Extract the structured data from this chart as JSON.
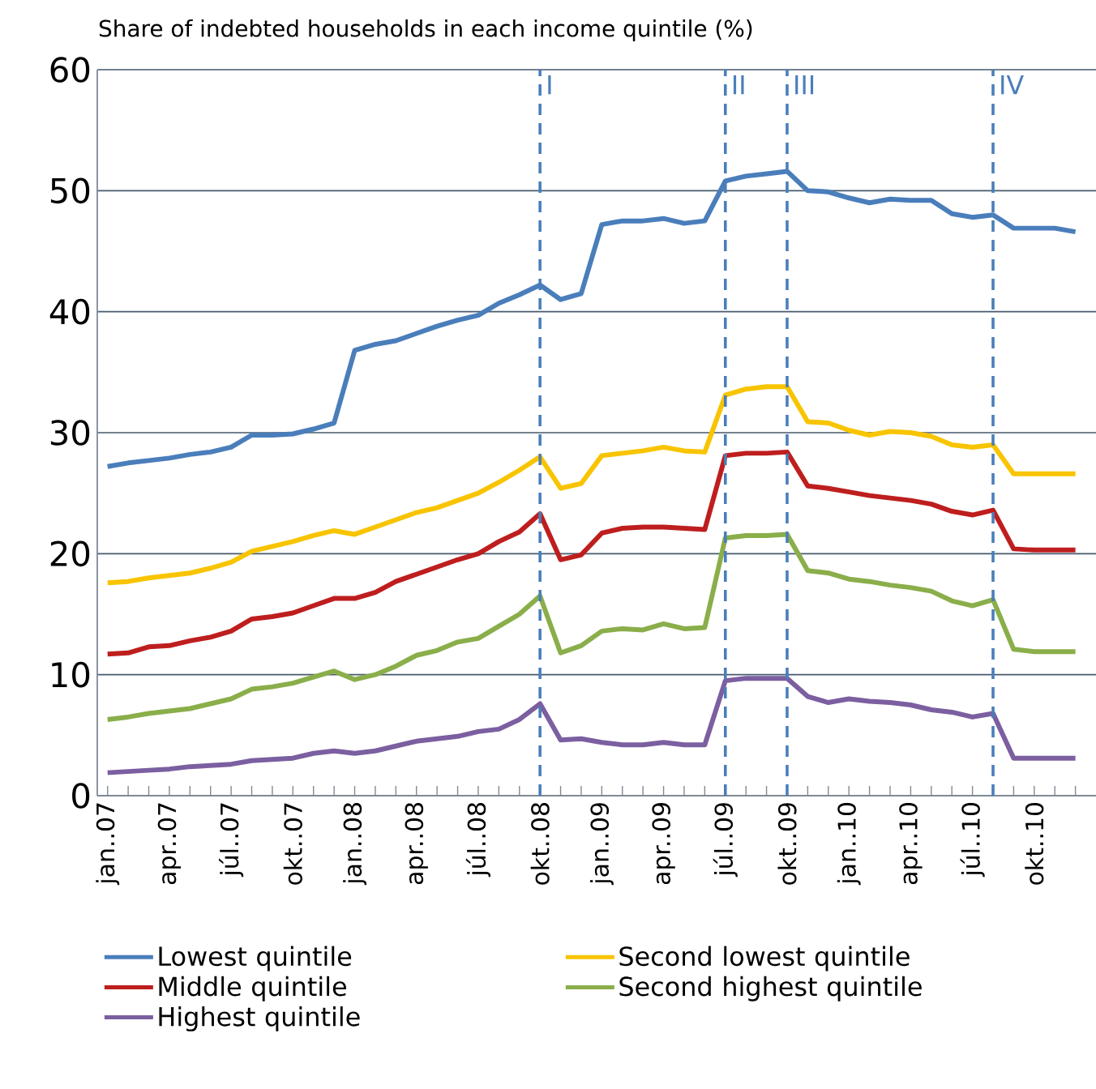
{
  "chart_data": {
    "type": "line",
    "title": "Share of indebted households in each income quintile (%)",
    "x": [
      "2007-01",
      "2007-02",
      "2007-03",
      "2007-04",
      "2007-05",
      "2007-06",
      "2007-07",
      "2007-08",
      "2007-09",
      "2007-10",
      "2007-11",
      "2007-12",
      "2008-01",
      "2008-02",
      "2008-03",
      "2008-04",
      "2008-05",
      "2008-06",
      "2008-07",
      "2008-08",
      "2008-09",
      "2008-10",
      "2008-11",
      "2008-12",
      "2009-01",
      "2009-02",
      "2009-03",
      "2009-04",
      "2009-05",
      "2009-06",
      "2009-07",
      "2009-08",
      "2009-09",
      "2009-10",
      "2009-11",
      "2009-12",
      "2010-01",
      "2010-02",
      "2010-03",
      "2010-04",
      "2010-05",
      "2010-06",
      "2010-07",
      "2010-08",
      "2010-09",
      "2010-10",
      "2010-11",
      "2010-12"
    ],
    "series": [
      {
        "name": "Lowest quintile",
        "color": "#4a7ebb",
        "values": [
          27.2,
          27.5,
          27.7,
          27.9,
          28.2,
          28.4,
          28.8,
          29.8,
          29.8,
          29.9,
          30.3,
          30.8,
          36.8,
          37.3,
          37.6,
          38.2,
          38.8,
          39.3,
          39.7,
          40.7,
          41.4,
          42.2,
          41.0,
          41.5,
          47.2,
          47.5,
          47.5,
          47.7,
          47.3,
          47.5,
          50.8,
          51.2,
          51.4,
          51.6,
          50.0,
          49.9,
          49.4,
          49.0,
          49.3,
          49.2,
          49.2,
          48.1,
          47.8,
          48.0,
          46.9,
          46.9,
          46.9,
          46.6
        ]
      },
      {
        "name": "Second lowest quintile",
        "color": "#f8c400",
        "values": [
          17.6,
          17.7,
          18.0,
          18.2,
          18.4,
          18.8,
          19.3,
          20.2,
          20.6,
          21.0,
          21.5,
          21.9,
          21.6,
          22.2,
          22.8,
          23.4,
          23.8,
          24.4,
          25.0,
          25.9,
          26.9,
          28.0,
          25.4,
          25.8,
          28.1,
          28.3,
          28.5,
          28.8,
          28.5,
          28.4,
          33.1,
          33.6,
          33.8,
          33.8,
          30.9,
          30.8,
          30.2,
          29.8,
          30.1,
          30.0,
          29.7,
          29.0,
          28.8,
          29.0,
          26.6,
          26.6,
          26.6,
          26.6
        ]
      },
      {
        "name": "Middle quintile",
        "color": "#be1e1e",
        "values": [
          11.7,
          11.8,
          12.3,
          12.4,
          12.8,
          13.1,
          13.6,
          14.6,
          14.8,
          15.1,
          15.7,
          16.3,
          16.3,
          16.8,
          17.7,
          18.3,
          18.9,
          19.5,
          20.0,
          21.0,
          21.8,
          23.3,
          19.5,
          19.9,
          21.7,
          22.1,
          22.2,
          22.2,
          22.1,
          22.0,
          28.1,
          28.3,
          28.3,
          28.4,
          25.6,
          25.4,
          25.1,
          24.8,
          24.6,
          24.4,
          24.1,
          23.5,
          23.2,
          23.6,
          20.4,
          20.3,
          20.3,
          20.3
        ]
      },
      {
        "name": "Second highest quintile",
        "color": "#8aae4a",
        "values": [
          6.3,
          6.5,
          6.8,
          7.0,
          7.2,
          7.6,
          8.0,
          8.8,
          9.0,
          9.3,
          9.8,
          10.3,
          9.6,
          10.0,
          10.7,
          11.6,
          12.0,
          12.7,
          13.0,
          14.0,
          15.0,
          16.5,
          11.8,
          12.4,
          13.6,
          13.8,
          13.7,
          14.2,
          13.8,
          13.9,
          21.3,
          21.5,
          21.5,
          21.6,
          18.6,
          18.4,
          17.9,
          17.7,
          17.4,
          17.2,
          16.9,
          16.1,
          15.7,
          16.2,
          12.1,
          11.9,
          11.9,
          11.9
        ]
      },
      {
        "name": "Highest quintile",
        "color": "#7b5fa0",
        "values": [
          1.9,
          2.0,
          2.1,
          2.2,
          2.4,
          2.5,
          2.6,
          2.9,
          3.0,
          3.1,
          3.5,
          3.7,
          3.5,
          3.7,
          4.1,
          4.5,
          4.7,
          4.9,
          5.3,
          5.5,
          6.3,
          7.6,
          4.6,
          4.7,
          4.4,
          4.2,
          4.2,
          4.4,
          4.2,
          4.2,
          9.5,
          9.7,
          9.7,
          9.7,
          8.2,
          7.7,
          8.0,
          7.8,
          7.7,
          7.5,
          7.1,
          6.9,
          6.5,
          6.8,
          3.1,
          3.1,
          3.1,
          3.1
        ]
      }
    ],
    "xlim": [
      "2006-12-16",
      "2010-12-31"
    ],
    "xticks": [
      {
        "value": "2007-01",
        "label": "jan..07"
      },
      {
        "value": "2007-02",
        "label": null
      },
      {
        "value": "2007-03",
        "label": null
      },
      {
        "value": "2007-04",
        "label": "apr..07"
      },
      {
        "value": "2007-05",
        "label": null
      },
      {
        "value": "2007-06",
        "label": null
      },
      {
        "value": "2007-07",
        "label": "júl..07"
      },
      {
        "value": "2007-08",
        "label": null
      },
      {
        "value": "2007-09",
        "label": null
      },
      {
        "value": "2007-10",
        "label": "okt..07"
      },
      {
        "value": "2007-11",
        "label": null
      },
      {
        "value": "2007-12",
        "label": null
      },
      {
        "value": "2008-01",
        "label": "jan..08"
      },
      {
        "value": "2008-02",
        "label": null
      },
      {
        "value": "2008-03",
        "label": null
      },
      {
        "value": "2008-04",
        "label": "apr..08"
      },
      {
        "value": "2008-05",
        "label": null
      },
      {
        "value": "2008-06",
        "label": null
      },
      {
        "value": "2008-07",
        "label": "júl..08"
      },
      {
        "value": "2008-08",
        "label": null
      },
      {
        "value": "2008-09",
        "label": null
      },
      {
        "value": "2008-10",
        "label": "okt..08"
      },
      {
        "value": "2008-11",
        "label": null
      },
      {
        "value": "2008-12",
        "label": null
      },
      {
        "value": "2009-01",
        "label": "jan..09"
      },
      {
        "value": "2009-02",
        "label": null
      },
      {
        "value": "2009-03",
        "label": null
      },
      {
        "value": "2009-04",
        "label": "apr..09"
      },
      {
        "value": "2009-05",
        "label": null
      },
      {
        "value": "2009-06",
        "label": null
      },
      {
        "value": "2009-07",
        "label": "júl..09"
      },
      {
        "value": "2009-08",
        "label": null
      },
      {
        "value": "2009-09",
        "label": null
      },
      {
        "value": "2009-10",
        "label": "okt..09"
      },
      {
        "value": "2009-11",
        "label": null
      },
      {
        "value": "2009-12",
        "label": null
      },
      {
        "value": "2010-01",
        "label": "jan..10"
      },
      {
        "value": "2010-02",
        "label": null
      },
      {
        "value": "2010-03",
        "label": null
      },
      {
        "value": "2010-04",
        "label": "apr..10"
      },
      {
        "value": "2010-05",
        "label": null
      },
      {
        "value": "2010-06",
        "label": null
      },
      {
        "value": "2010-07",
        "label": "júl..10"
      },
      {
        "value": "2010-08",
        "label": null
      },
      {
        "value": "2010-09",
        "label": null
      },
      {
        "value": "2010-10",
        "label": "okt..10"
      },
      {
        "value": "2010-11",
        "label": null
      },
      {
        "value": "2010-12",
        "label": null
      }
    ],
    "ylim": [
      0,
      60
    ],
    "yticks": [
      0,
      10,
      20,
      30,
      40,
      50,
      60
    ],
    "ref_lines": [
      {
        "axis": "x",
        "value": "2008-10",
        "label": "I",
        "color": "#4a7ebb",
        "line_style": "dashed"
      },
      {
        "axis": "x",
        "value": "2009-07",
        "label": "II",
        "color": "#4a7ebb",
        "line_style": "dashed"
      },
      {
        "axis": "x",
        "value": "2009-10",
        "label": "III",
        "color": "#4a7ebb",
        "line_style": "dashed"
      },
      {
        "axis": "x",
        "value": "2010-08",
        "label": "IV",
        "color": "#4a7ebb",
        "line_style": "dashed"
      }
    ],
    "grid": "y",
    "legend": "bottom",
    "line_style": "solid"
  }
}
